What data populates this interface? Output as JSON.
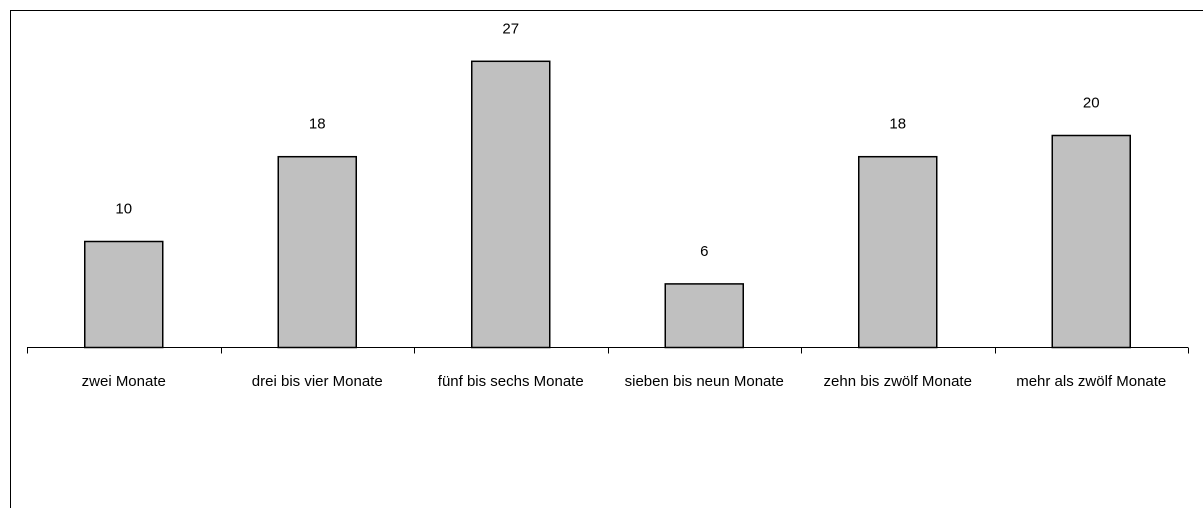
{
  "chart_data": {
    "type": "bar",
    "categories": [
      "zwei Monate",
      "drei bis vier Monate",
      "fünf bis sechs Monate",
      "sieben bis neun Monate",
      "zehn bis zwölf Monate",
      "mehr als zwölf Monate"
    ],
    "values": [
      10,
      18,
      27,
      6,
      18,
      20
    ],
    "color": "#c0c0c0"
  }
}
